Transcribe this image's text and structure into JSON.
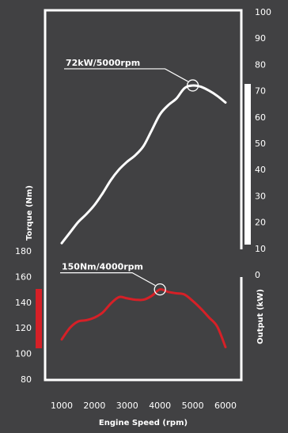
{
  "chart_data": {
    "type": "line",
    "title": "",
    "xlabel": "Engine Speed (rpm)",
    "torque_label": "Torque (Nm)",
    "output_label": "Output (kW)",
    "x_ticks": [
      1000,
      2000,
      3000,
      4000,
      5000,
      6000
    ],
    "torque_ticks": [
      80,
      100,
      120,
      140,
      160,
      180
    ],
    "output_ticks": [
      0,
      10,
      20,
      30,
      40,
      50,
      60,
      70,
      80,
      90,
      100
    ],
    "xlim": [
      1000,
      6000
    ],
    "torque_ylim": [
      80,
      180
    ],
    "output_ylim": [
      0,
      100
    ],
    "grid": false,
    "series": [
      {
        "name": "",
        "axis": "output",
        "unit": "kW",
        "color": "#ffffff",
        "points": [
          [
            1000,
            12
          ],
          [
            1250,
            16
          ],
          [
            1500,
            20
          ],
          [
            1750,
            23
          ],
          [
            2000,
            26.5
          ],
          [
            2250,
            31
          ],
          [
            2500,
            36
          ],
          [
            2750,
            40
          ],
          [
            3000,
            43
          ],
          [
            3250,
            45.5
          ],
          [
            3500,
            49
          ],
          [
            3750,
            55
          ],
          [
            4000,
            61
          ],
          [
            4250,
            64.5
          ],
          [
            4500,
            67
          ],
          [
            4750,
            71
          ],
          [
            5000,
            72
          ],
          [
            5250,
            71.5
          ],
          [
            5500,
            70
          ],
          [
            5750,
            68
          ],
          [
            6000,
            65.5
          ]
        ]
      },
      {
        "name": "",
        "axis": "torque",
        "unit": "Nm",
        "color": "#d62027",
        "points": [
          [
            1000,
            111
          ],
          [
            1250,
            120
          ],
          [
            1500,
            125
          ],
          [
            1750,
            126
          ],
          [
            2000,
            128
          ],
          [
            2250,
            132
          ],
          [
            2500,
            139
          ],
          [
            2750,
            144
          ],
          [
            3000,
            143
          ],
          [
            3250,
            142
          ],
          [
            3500,
            142
          ],
          [
            3750,
            145
          ],
          [
            4000,
            150
          ],
          [
            4250,
            148
          ],
          [
            4500,
            147
          ],
          [
            4750,
            146
          ],
          [
            5000,
            141
          ],
          [
            5250,
            135
          ],
          [
            5500,
            128
          ],
          [
            5750,
            121
          ],
          [
            6000,
            105
          ]
        ]
      }
    ],
    "annotations": [
      {
        "text": "72kW/5000rpm",
        "x": 5000,
        "y": 72,
        "axis": "output"
      },
      {
        "text": "150Nm/4000rpm",
        "x": 4000,
        "y": 150,
        "axis": "torque"
      }
    ],
    "indicator_colors": {
      "torque": "#d62027",
      "output": "#ffffff"
    }
  }
}
